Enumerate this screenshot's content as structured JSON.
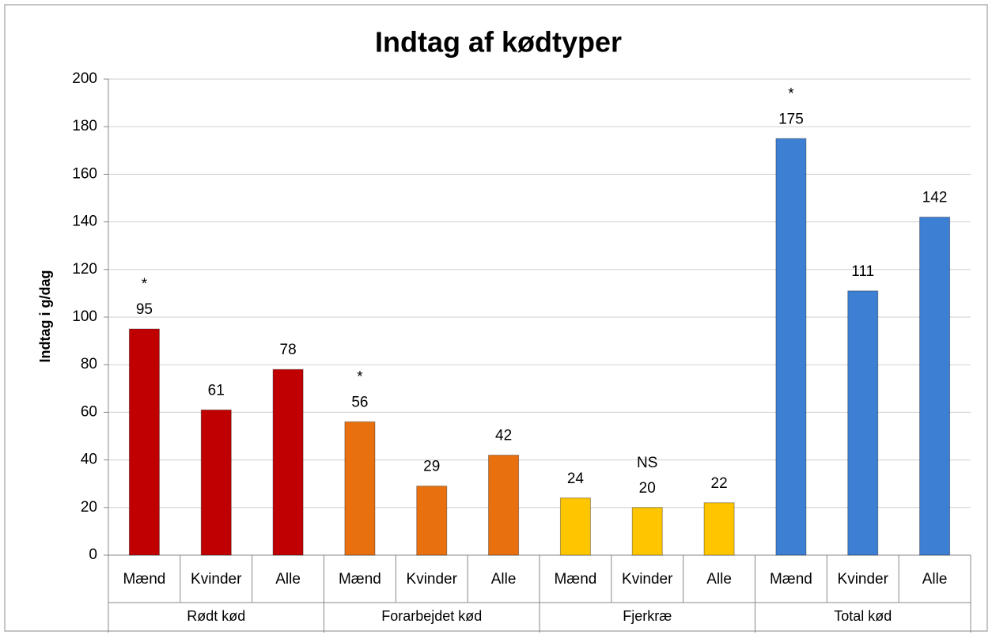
{
  "chart_data": {
    "type": "bar",
    "title": "Indtag af kødtyper",
    "y_label": "Indtag i g/dag",
    "ylim": [
      0,
      200
    ],
    "yticks": [
      0,
      20,
      40,
      60,
      80,
      100,
      120,
      140,
      160,
      180,
      200
    ],
    "grid": true,
    "groups": [
      {
        "name": "Rødt kød",
        "color": "#c00000",
        "categories": [
          "Mænd",
          "Kvinder",
          "Alle"
        ],
        "values": [
          95,
          61,
          78
        ],
        "annotations": [
          "*",
          null,
          null
        ]
      },
      {
        "name": "Forarbejdet kød",
        "color": "#e8700f",
        "categories": [
          "Mænd",
          "Kvinder",
          "Alle"
        ],
        "values": [
          56,
          29,
          42
        ],
        "annotations": [
          "*",
          null,
          null
        ]
      },
      {
        "name": "Fjerkræ",
        "color": "#ffc600",
        "categories": [
          "Mænd",
          "Kvinder",
          "Alle"
        ],
        "values": [
          24,
          20,
          22
        ],
        "annotations": [
          null,
          "NS",
          null
        ]
      },
      {
        "name": "Total kød",
        "color": "#3d7fd3",
        "categories": [
          "Mænd",
          "Kvinder",
          "Alle"
        ],
        "values": [
          175,
          111,
          142
        ],
        "annotations": [
          "*",
          null,
          null
        ]
      }
    ]
  }
}
